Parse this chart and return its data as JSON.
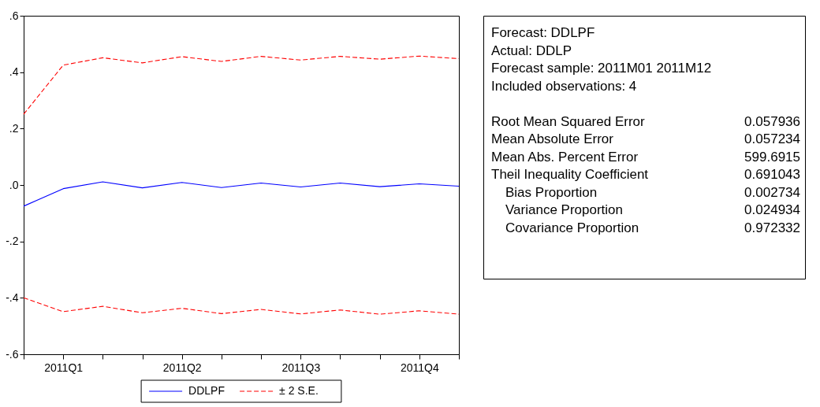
{
  "chart_data": [
    {
      "type": "line",
      "categories": [
        null,
        "2011Q1",
        null,
        null,
        "2011Q2",
        null,
        null,
        "2011Q3",
        null,
        null,
        "2011Q4",
        null
      ],
      "ylim": [
        -0.6,
        0.6
      ],
      "yticks": [
        {
          "value": -0.6,
          "label": "-.6"
        },
        {
          "value": -0.4,
          "label": "-.4"
        },
        {
          "value": -0.2,
          "label": "-.2"
        },
        {
          "value": 0,
          "label": ".0"
        },
        {
          "value": 0.2,
          "label": ".2"
        },
        {
          "value": 0.4,
          "label": ".4"
        },
        {
          "value": 0.6,
          "label": ".6"
        }
      ],
      "series": [
        {
          "name": "DDLPF",
          "color": "#0000ff",
          "line_style": "solid",
          "values": [
            -0.075,
            -0.013,
            0.011,
            -0.01,
            0.009,
            -0.009,
            0.007,
            -0.007,
            0.007,
            -0.006,
            0.004,
            -0.004
          ]
        },
        {
          "name": "± 2 S.E.",
          "color": "#ff0000",
          "line_style": "dashed",
          "values": [
            0.251,
            0.425,
            0.451,
            0.433,
            0.455,
            0.438,
            0.456,
            0.443,
            0.456,
            0.446,
            0.457,
            0.448
          ]
        },
        {
          "color": "#ff0000",
          "line_style": "dashed",
          "values": [
            -0.4,
            -0.449,
            -0.43,
            -0.453,
            -0.437,
            -0.456,
            -0.441,
            -0.457,
            -0.443,
            -0.458,
            -0.446,
            -0.458
          ]
        }
      ],
      "grid": false,
      "legend": "bottom"
    },
    {
      "type": "other",
      "annotations": [
        "Forecast: DDLPF",
        "Actual: DDLP",
        "Forecast sample: 2011M01 2011M12",
        "Included observations: 4"
      ],
      "categories": [
        "Root Mean Squared Error",
        "Mean Absolute Error",
        "Mean Abs. Percent Error",
        "Theil Inequality Coefficient",
        "Bias Proportion",
        "Variance Proportion",
        "Covariance Proportion"
      ],
      "values": [
        0.057936,
        0.057234,
        599.6915,
        0.691043,
        0.002734,
        0.024934,
        0.972332
      ],
      "data_labels": true
    }
  ]
}
